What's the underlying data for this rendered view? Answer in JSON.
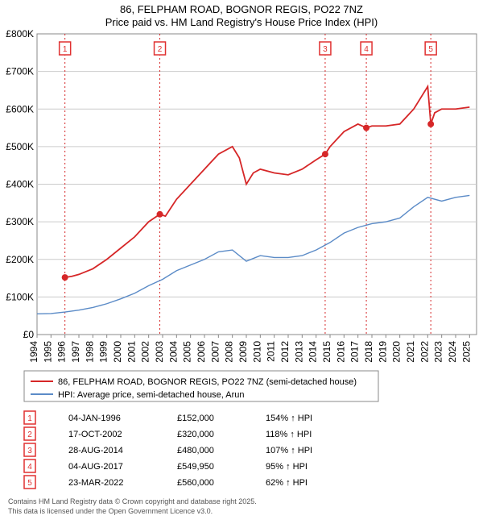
{
  "title_line1": "86, FELPHAM ROAD, BOGNOR REGIS, PO22 7NZ",
  "title_line2": "Price paid vs. HM Land Registry's House Price Index (HPI)",
  "chart": {
    "type": "line",
    "background_color": "#ffffff",
    "grid_color": "#cccccc",
    "x_range": [
      1994,
      2025.5
    ],
    "y_range": [
      0,
      800000
    ],
    "y_tick_step": 100000,
    "y_tick_labels": [
      "£0",
      "£100K",
      "£200K",
      "£300K",
      "£400K",
      "£500K",
      "£600K",
      "£700K",
      "£800K"
    ],
    "x_ticks": [
      1994,
      1995,
      1996,
      1997,
      1998,
      1999,
      2000,
      2001,
      2002,
      2003,
      2004,
      2005,
      2006,
      2007,
      2008,
      2009,
      2010,
      2011,
      2012,
      2013,
      2014,
      2015,
      2016,
      2017,
      2018,
      2019,
      2020,
      2021,
      2022,
      2023,
      2024,
      2025
    ],
    "series": [
      {
        "name": "price_paid",
        "color": "#d62728",
        "width": 1.8,
        "points": [
          [
            1996.0,
            152000
          ],
          [
            1996.5,
            155000
          ],
          [
            1997,
            160000
          ],
          [
            1998,
            175000
          ],
          [
            1999,
            200000
          ],
          [
            2000,
            230000
          ],
          [
            2001,
            260000
          ],
          [
            2002,
            300000
          ],
          [
            2002.8,
            320000
          ],
          [
            2003.2,
            315000
          ],
          [
            2004,
            360000
          ],
          [
            2005,
            400000
          ],
          [
            2006,
            440000
          ],
          [
            2007,
            480000
          ],
          [
            2008,
            500000
          ],
          [
            2008.5,
            470000
          ],
          [
            2009,
            400000
          ],
          [
            2009.5,
            430000
          ],
          [
            2010,
            440000
          ],
          [
            2011,
            430000
          ],
          [
            2012,
            425000
          ],
          [
            2013,
            440000
          ],
          [
            2014,
            465000
          ],
          [
            2014.65,
            480000
          ],
          [
            2015,
            500000
          ],
          [
            2016,
            540000
          ],
          [
            2017,
            560000
          ],
          [
            2017.6,
            549950
          ],
          [
            2018,
            555000
          ],
          [
            2019,
            555000
          ],
          [
            2020,
            560000
          ],
          [
            2021,
            600000
          ],
          [
            2022,
            660000
          ],
          [
            2022.22,
            560000
          ],
          [
            2022.5,
            590000
          ],
          [
            2023,
            600000
          ],
          [
            2024,
            600000
          ],
          [
            2025,
            605000
          ]
        ]
      },
      {
        "name": "hpi",
        "color": "#5b8bc7",
        "width": 1.4,
        "points": [
          [
            1994,
            55000
          ],
          [
            1995,
            56000
          ],
          [
            1996,
            60000
          ],
          [
            1997,
            65000
          ],
          [
            1998,
            72000
          ],
          [
            1999,
            82000
          ],
          [
            2000,
            95000
          ],
          [
            2001,
            110000
          ],
          [
            2002,
            130000
          ],
          [
            2003,
            147000
          ],
          [
            2004,
            170000
          ],
          [
            2005,
            185000
          ],
          [
            2006,
            200000
          ],
          [
            2007,
            220000
          ],
          [
            2008,
            225000
          ],
          [
            2009,
            195000
          ],
          [
            2010,
            210000
          ],
          [
            2011,
            205000
          ],
          [
            2012,
            205000
          ],
          [
            2013,
            210000
          ],
          [
            2014,
            225000
          ],
          [
            2015,
            245000
          ],
          [
            2016,
            270000
          ],
          [
            2017,
            285000
          ],
          [
            2018,
            295000
          ],
          [
            2019,
            300000
          ],
          [
            2020,
            310000
          ],
          [
            2021,
            340000
          ],
          [
            2022,
            365000
          ],
          [
            2023,
            355000
          ],
          [
            2024,
            365000
          ],
          [
            2025,
            370000
          ]
        ]
      }
    ],
    "point_markers": [
      {
        "x": 1996.0,
        "y": 152000
      },
      {
        "x": 2002.8,
        "y": 320000
      },
      {
        "x": 2014.65,
        "y": 480000
      },
      {
        "x": 2017.6,
        "y": 549950
      },
      {
        "x": 2022.22,
        "y": 560000
      }
    ],
    "marker_labels": [
      {
        "n": "1",
        "x": 1996.0
      },
      {
        "n": "2",
        "x": 2002.8
      },
      {
        "n": "3",
        "x": 2014.65
      },
      {
        "n": "4",
        "x": 2017.6
      },
      {
        "n": "5",
        "x": 2022.22
      }
    ]
  },
  "legend": {
    "items": [
      {
        "color": "#d62728",
        "label": "86, FELPHAM ROAD, BOGNOR REGIS, PO22 7NZ (semi-detached house)"
      },
      {
        "color": "#5b8bc7",
        "label": "HPI: Average price, semi-detached house, Arun"
      }
    ]
  },
  "table": {
    "rows": [
      {
        "n": "1",
        "date": "04-JAN-1996",
        "price": "£152,000",
        "pct": "154% ↑ HPI"
      },
      {
        "n": "2",
        "date": "17-OCT-2002",
        "price": "£320,000",
        "pct": "118% ↑ HPI"
      },
      {
        "n": "3",
        "date": "28-AUG-2014",
        "price": "£480,000",
        "pct": "107% ↑ HPI"
      },
      {
        "n": "4",
        "date": "04-AUG-2017",
        "price": "£549,950",
        "pct": "95% ↑ HPI"
      },
      {
        "n": "5",
        "date": "23-MAR-2022",
        "price": "£560,000",
        "pct": "62% ↑ HPI"
      }
    ]
  },
  "footer_line1": "Contains HM Land Registry data © Crown copyright and database right 2025.",
  "footer_line2": "This data is licensed under the Open Government Licence v3.0."
}
